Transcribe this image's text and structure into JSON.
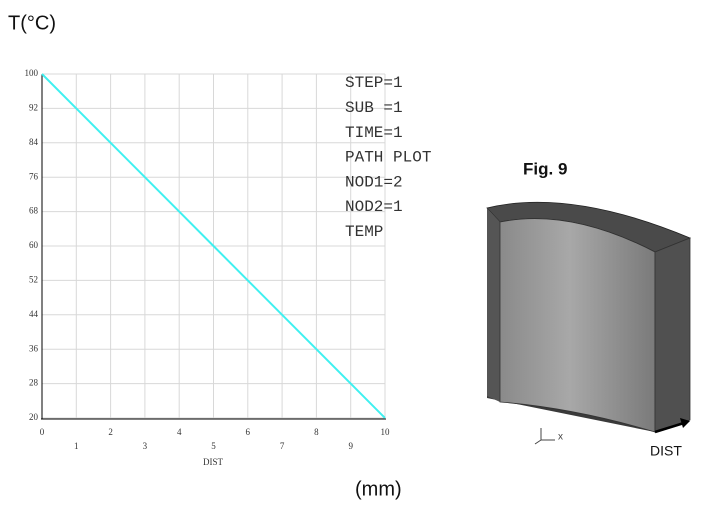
{
  "chart_data": {
    "type": "line",
    "y_label": "T(°C)",
    "x_label": "DIST",
    "x_unit_label": "(mm)",
    "x": [
      0,
      1,
      2,
      3,
      4,
      5,
      6,
      7,
      8,
      9,
      10
    ],
    "series": [
      {
        "name": "TEMP",
        "color": "#3ff0f0",
        "values": [
          100,
          92,
          84,
          76,
          68,
          60,
          52,
          44,
          36,
          28,
          20
        ]
      }
    ],
    "xlim": [
      0,
      10
    ],
    "xticks": [
      0,
      1,
      2,
      3,
      4,
      5,
      6,
      7,
      8,
      9,
      10
    ],
    "ylim": [
      20,
      100
    ],
    "yticks": [
      20,
      28,
      36,
      44,
      52,
      60,
      68,
      76,
      84,
      92,
      100
    ],
    "grid": true,
    "annotations": [
      "STEP=1",
      "SUB =1",
      "TIME=1",
      "PATH PLOT",
      "NOD1=2",
      "NOD2=1"
    ]
  },
  "figure_label": "Fig. 9",
  "model": {
    "triad_label": "x",
    "arrow_label": "DIST"
  }
}
